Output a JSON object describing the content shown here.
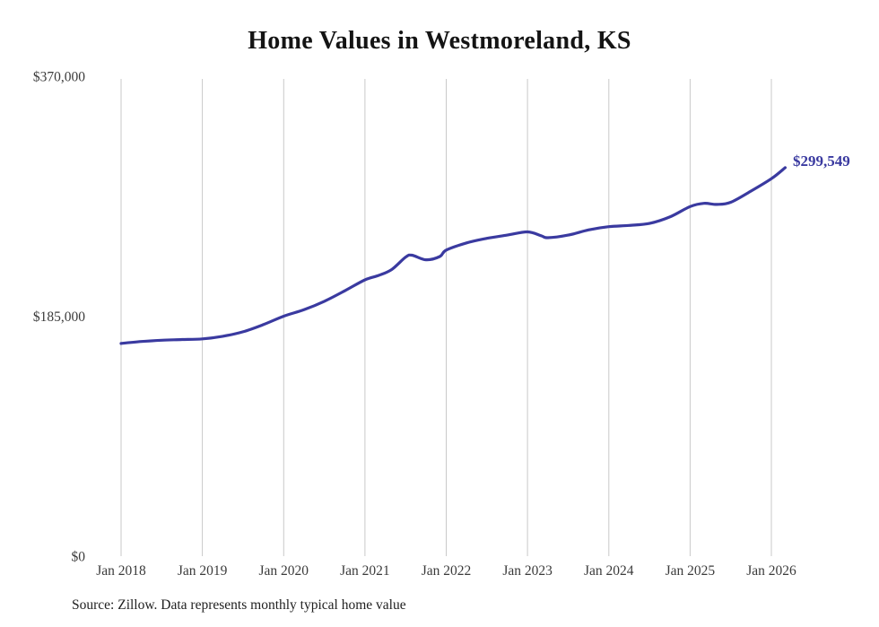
{
  "page": {
    "title": "Home Values in Westmoreland, KS",
    "source_note": "Source: Zillow. Data represents monthly typical home value",
    "latest_value_label": "$299,549"
  },
  "colors": {
    "line": "#3a3aa0",
    "latest_label": "#3a3aa0",
    "grid": "#c9c9c9",
    "tick_text": "#3b3b3b",
    "title_text": "#141414",
    "source_text": "#1f1f1f",
    "background": "#ffffff"
  },
  "chart_data": {
    "type": "line",
    "title": "Home Values in Westmoreland, KS",
    "xlabel": "",
    "ylabel": "",
    "ylim": [
      0,
      370000
    ],
    "grid": "vertical-only",
    "legend": "none",
    "y_ticks": [
      {
        "value": 0,
        "label": "$0"
      },
      {
        "value": 185000,
        "label": "$185,000"
      },
      {
        "value": 370000,
        "label": "$370,000"
      }
    ],
    "x_ticks": [
      {
        "x": 2018,
        "label": "Jan 2018"
      },
      {
        "x": 2019,
        "label": "Jan 2019"
      },
      {
        "x": 2020,
        "label": "Jan 2020"
      },
      {
        "x": 2021,
        "label": "Jan 2021"
      },
      {
        "x": 2022,
        "label": "Jan 2022"
      },
      {
        "x": 2023,
        "label": "Jan 2023"
      },
      {
        "x": 2024,
        "label": "Jan 2024"
      },
      {
        "x": 2025,
        "label": "Jan 2025"
      },
      {
        "x": 2026,
        "label": "Jan 2026"
      }
    ],
    "latest_value": 299549,
    "series": [
      {
        "name": "Monthly typical home value",
        "points": [
          [
            2018.0,
            164000
          ],
          [
            2018.25,
            165500
          ],
          [
            2018.5,
            166500
          ],
          [
            2018.75,
            167000
          ],
          [
            2019.0,
            167500
          ],
          [
            2019.25,
            169500
          ],
          [
            2019.5,
            173000
          ],
          [
            2019.75,
            178500
          ],
          [
            2020.0,
            185000
          ],
          [
            2020.25,
            190000
          ],
          [
            2020.5,
            196500
          ],
          [
            2020.75,
            204500
          ],
          [
            2021.0,
            213000
          ],
          [
            2021.17,
            216500
          ],
          [
            2021.33,
            221000
          ],
          [
            2021.5,
            230500
          ],
          [
            2021.58,
            232000
          ],
          [
            2021.75,
            228500
          ],
          [
            2021.92,
            231000
          ],
          [
            2022.0,
            236000
          ],
          [
            2022.25,
            241500
          ],
          [
            2022.5,
            245000
          ],
          [
            2022.75,
            247500
          ],
          [
            2023.0,
            250000
          ],
          [
            2023.17,
            247000
          ],
          [
            2023.25,
            245500
          ],
          [
            2023.5,
            247500
          ],
          [
            2023.75,
            251500
          ],
          [
            2024.0,
            254000
          ],
          [
            2024.25,
            255000
          ],
          [
            2024.5,
            256500
          ],
          [
            2024.75,
            261500
          ],
          [
            2025.0,
            269500
          ],
          [
            2025.17,
            272000
          ],
          [
            2025.33,
            271200
          ],
          [
            2025.5,
            272800
          ],
          [
            2025.75,
            281500
          ],
          [
            2026.0,
            291000
          ],
          [
            2026.17,
            299549
          ]
        ]
      }
    ]
  }
}
